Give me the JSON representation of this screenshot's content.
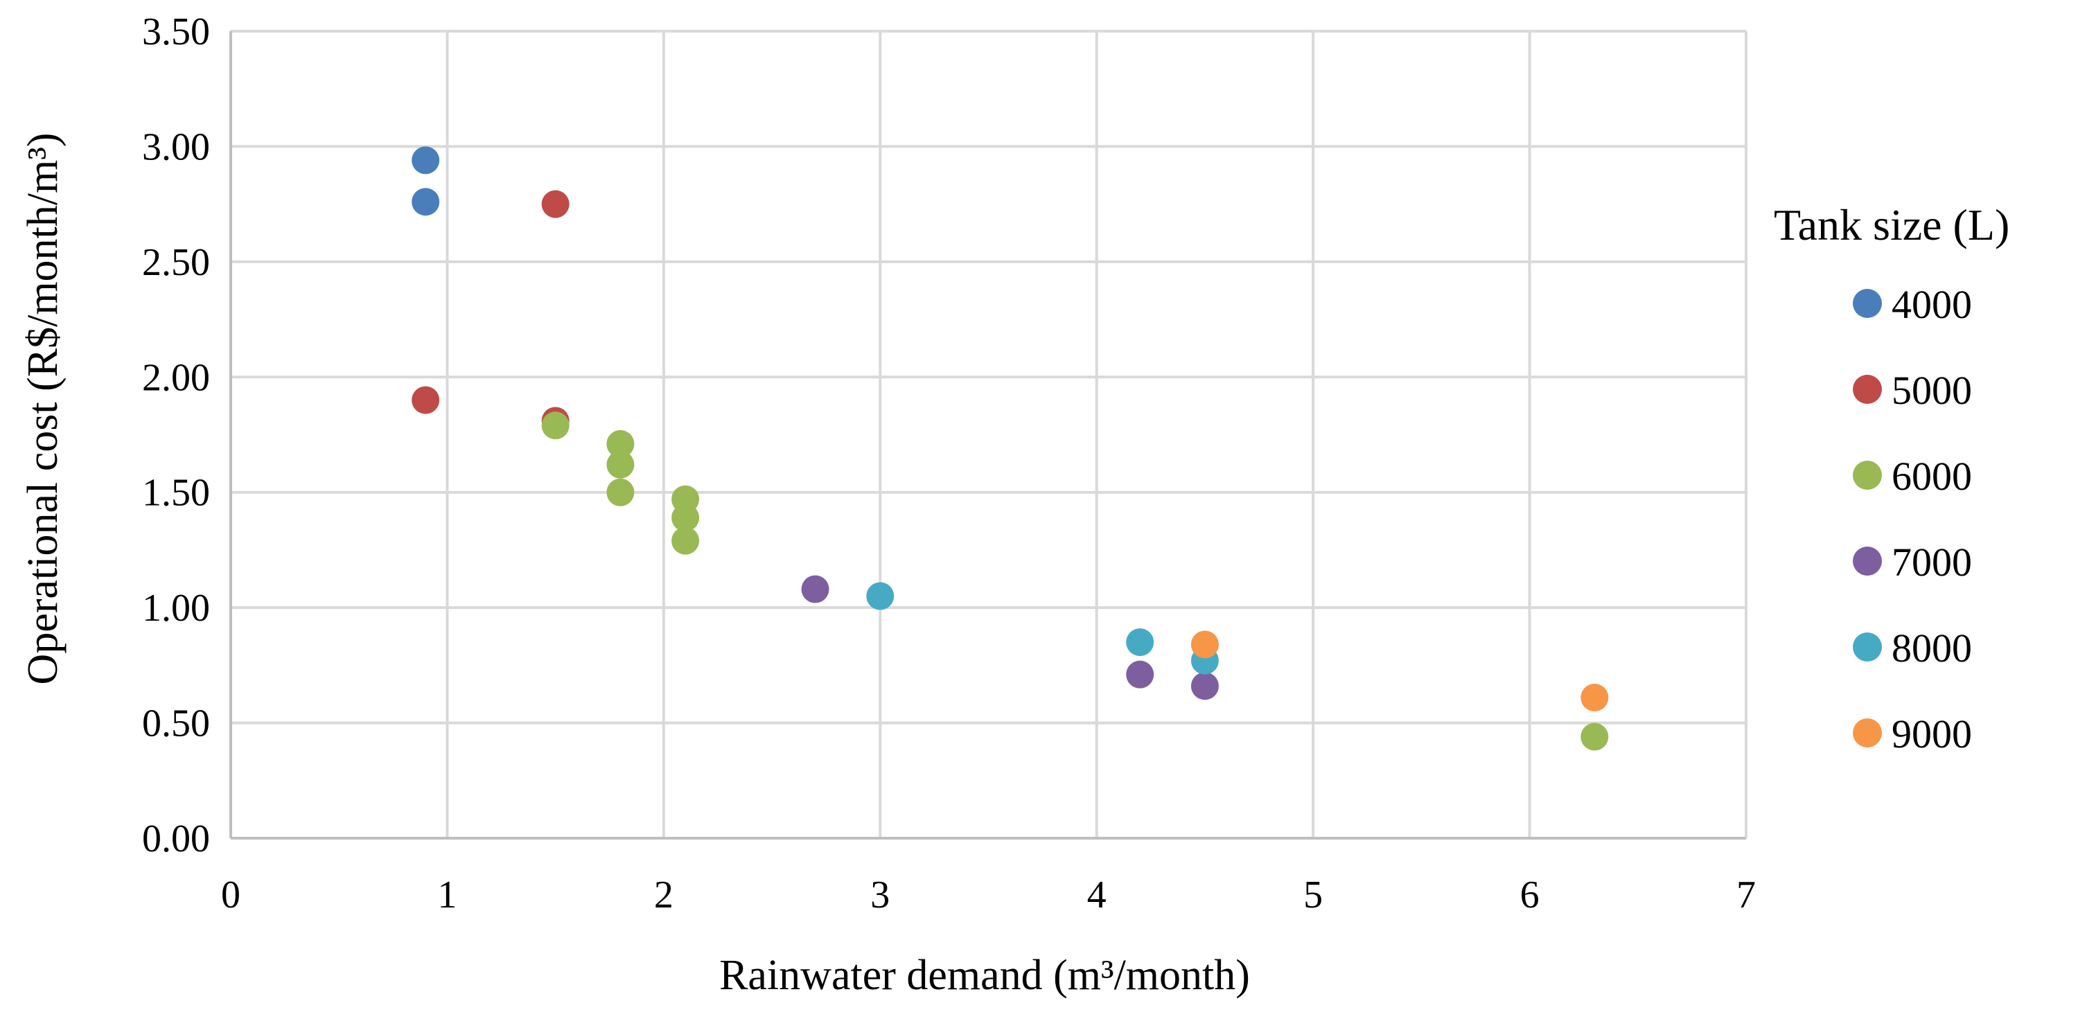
{
  "chart_data": {
    "type": "scatter",
    "title": "",
    "xlabel": "Rainwater demand (m³/month)",
    "ylabel": "Operational cost (R$/month/m³)",
    "xlim": [
      0,
      7
    ],
    "ylim": [
      0,
      3.5
    ],
    "x_ticks": [
      "0",
      "1",
      "2",
      "3",
      "4",
      "5",
      "6",
      "7"
    ],
    "y_ticks": [
      "0.00",
      "0.50",
      "1.00",
      "1.50",
      "2.00",
      "2.50",
      "3.00",
      "3.50"
    ],
    "grid": true,
    "legend_title": "Tank size (L)",
    "legend_position": "right",
    "series": [
      {
        "name": "4000",
        "color": "#4a7ebb",
        "points": [
          [
            0.9,
            2.94
          ],
          [
            0.9,
            2.76
          ]
        ]
      },
      {
        "name": "5000",
        "color": "#be4b48",
        "points": [
          [
            1.5,
            2.75
          ],
          [
            0.9,
            1.9
          ],
          [
            1.5,
            1.81
          ]
        ]
      },
      {
        "name": "6000",
        "color": "#98b954",
        "points": [
          [
            1.5,
            1.79
          ],
          [
            1.8,
            1.71
          ],
          [
            1.8,
            1.62
          ],
          [
            1.8,
            1.5
          ],
          [
            2.1,
            1.47
          ],
          [
            2.1,
            1.39
          ],
          [
            2.1,
            1.29
          ],
          [
            6.3,
            0.44
          ]
        ]
      },
      {
        "name": "7000",
        "color": "#7d5fa0",
        "points": [
          [
            2.7,
            1.08
          ],
          [
            4.2,
            0.71
          ],
          [
            4.5,
            0.66
          ]
        ]
      },
      {
        "name": "8000",
        "color": "#46aac5",
        "points": [
          [
            3.0,
            1.05
          ],
          [
            4.2,
            0.85
          ],
          [
            4.5,
            0.77
          ]
        ]
      },
      {
        "name": "9000",
        "color": "#f79646",
        "points": [
          [
            4.5,
            0.84
          ],
          [
            6.3,
            0.61
          ]
        ]
      }
    ]
  }
}
